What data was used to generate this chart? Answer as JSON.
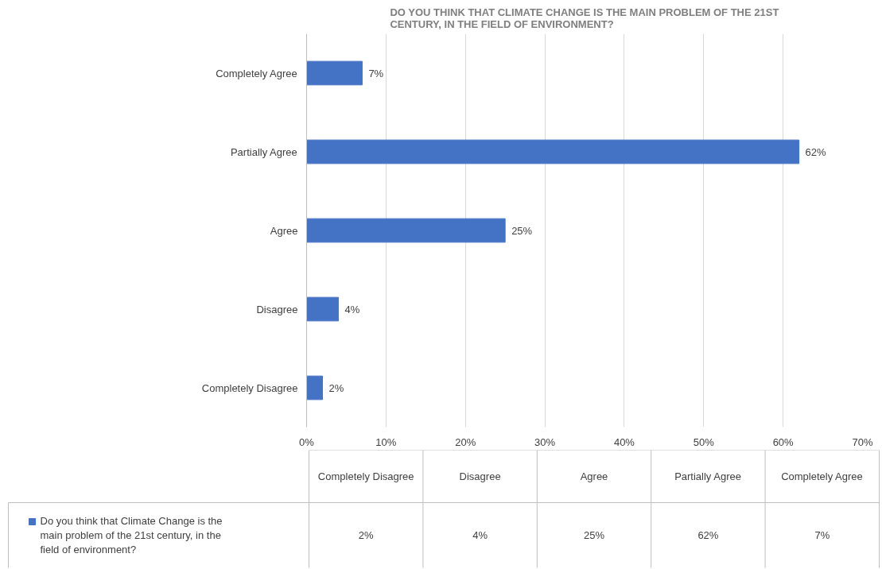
{
  "chart_data": {
    "type": "bar",
    "orientation": "horizontal",
    "title": "DO YOU THINK THAT CLIMATE CHANGE IS THE MAIN PROBLEM OF THE 21ST CENTURY, IN THE FIELD OF ENVIRONMENT?",
    "categories": [
      "Completely Agree",
      "Partially Agree",
      "Agree",
      "Disagree",
      "Completely Disagree"
    ],
    "series": [
      {
        "name": "Do you think that Climate Change is the main problem of the 21st century, in the field of environment?",
        "color": "#4472c4",
        "values": [
          7,
          62,
          25,
          4,
          2
        ],
        "value_labels": [
          "7%",
          "62%",
          "25%",
          "4%",
          "2%"
        ]
      }
    ],
    "xlim": [
      0,
      70
    ],
    "xticks": [
      {
        "value": 0,
        "label": "0%"
      },
      {
        "value": 10,
        "label": "10%"
      },
      {
        "value": 20,
        "label": "20%"
      },
      {
        "value": 30,
        "label": "30%"
      },
      {
        "value": 40,
        "label": "40%"
      },
      {
        "value": 50,
        "label": "50%"
      },
      {
        "value": 60,
        "label": "60%"
      },
      {
        "value": 70,
        "label": "70%"
      }
    ],
    "grid": "x",
    "legend": "bottom"
  }
}
